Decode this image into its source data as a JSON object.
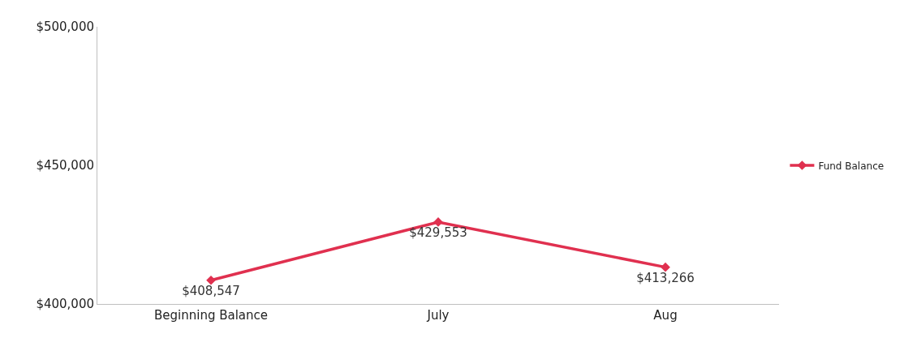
{
  "chart_data": {
    "type": "line",
    "categories": [
      "Beginning Balance",
      "July",
      "Aug"
    ],
    "series": [
      {
        "name": "Fund Balance",
        "color": "#e0304f",
        "values": [
          408547,
          429553,
          413266
        ]
      }
    ],
    "ylim": [
      400000,
      500000
    ],
    "yticks": [
      {
        "value": 400000,
        "label": "$400,000"
      },
      {
        "value": 450000,
        "label": "$450,000"
      },
      {
        "value": 500000,
        "label": "$500,000"
      }
    ],
    "value_labels": [
      "$408,547",
      "$429,553",
      "$413,266"
    ],
    "grid": false,
    "legend": "right",
    "marker": "diamond",
    "line_style": "solid"
  }
}
